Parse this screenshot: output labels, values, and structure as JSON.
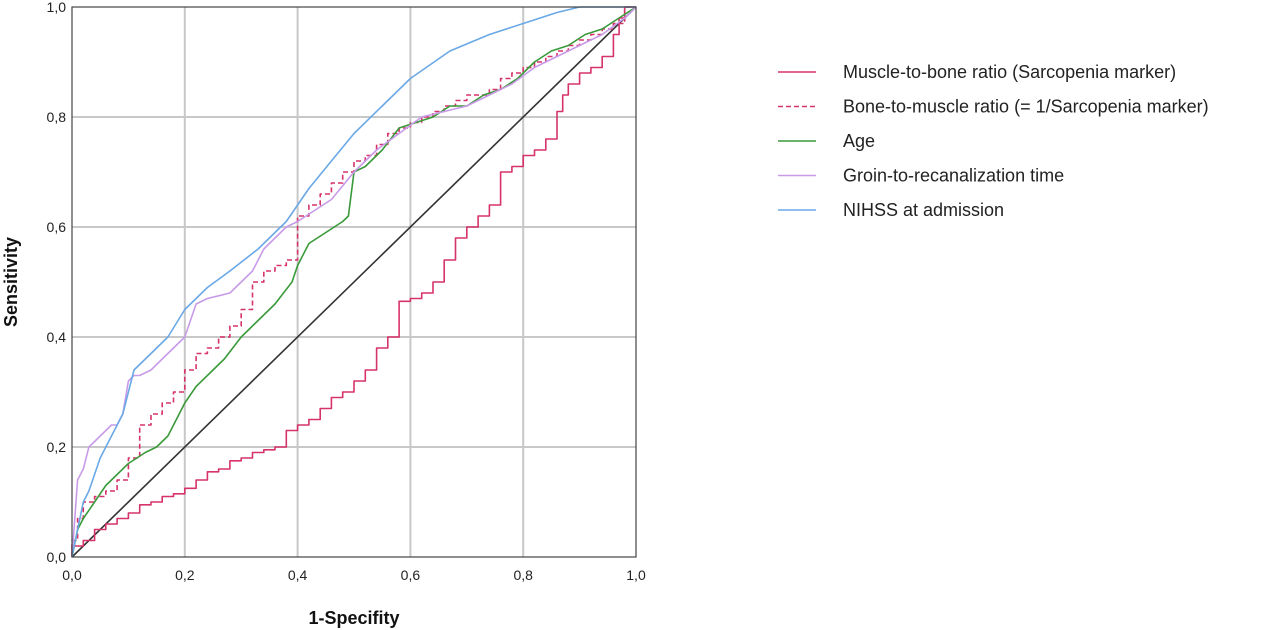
{
  "chart_data": {
    "type": "line",
    "xlabel": "1-Specifity",
    "ylabel": "Sensitivity",
    "xlim": [
      0,
      1
    ],
    "ylim": [
      0,
      1
    ],
    "xticks": [
      "0,0",
      "0,2",
      "0,4",
      "0,6",
      "0,8",
      "1,0"
    ],
    "yticks": [
      "0,0",
      "0,2",
      "0,4",
      "0,6",
      "0,8",
      "1,0"
    ],
    "grid": true,
    "legend_position": "right",
    "series": [
      {
        "name": "Muscle-to-bone ratio (Sarcopenia marker)",
        "color": "#d6336c",
        "dash": "solid",
        "step": true,
        "x": [
          0,
          0.02,
          0.04,
          0.06,
          0.08,
          0.1,
          0.12,
          0.14,
          0.16,
          0.18,
          0.2,
          0.22,
          0.24,
          0.26,
          0.28,
          0.3,
          0.32,
          0.34,
          0.36,
          0.38,
          0.4,
          0.42,
          0.44,
          0.46,
          0.48,
          0.5,
          0.52,
          0.54,
          0.56,
          0.58,
          0.6,
          0.62,
          0.64,
          0.66,
          0.68,
          0.7,
          0.72,
          0.74,
          0.76,
          0.78,
          0.8,
          0.82,
          0.84,
          0.86,
          0.87,
          0.88,
          0.9,
          0.92,
          0.94,
          0.96,
          0.97,
          0.98,
          1.0
        ],
        "y": [
          0,
          0.02,
          0.03,
          0.05,
          0.06,
          0.07,
          0.08,
          0.095,
          0.1,
          0.11,
          0.115,
          0.125,
          0.14,
          0.155,
          0.16,
          0.175,
          0.18,
          0.19,
          0.195,
          0.2,
          0.23,
          0.24,
          0.25,
          0.27,
          0.29,
          0.3,
          0.32,
          0.34,
          0.38,
          0.4,
          0.465,
          0.47,
          0.48,
          0.5,
          0.54,
          0.58,
          0.6,
          0.62,
          0.64,
          0.7,
          0.71,
          0.73,
          0.74,
          0.76,
          0.81,
          0.84,
          0.86,
          0.88,
          0.89,
          0.91,
          0.95,
          0.98,
          1.0
        ]
      },
      {
        "name": "Bone-to-muscle ratio (= 1/Sarcopenia marker)",
        "color": "#d6336c",
        "dash": "dashed",
        "step": true,
        "x": [
          0,
          0.01,
          0.02,
          0.04,
          0.06,
          0.08,
          0.1,
          0.12,
          0.14,
          0.16,
          0.18,
          0.2,
          0.22,
          0.24,
          0.26,
          0.28,
          0.3,
          0.32,
          0.34,
          0.36,
          0.38,
          0.4,
          0.42,
          0.44,
          0.46,
          0.48,
          0.5,
          0.52,
          0.54,
          0.56,
          0.58,
          0.6,
          0.62,
          0.64,
          0.66,
          0.68,
          0.7,
          0.72,
          0.74,
          0.76,
          0.78,
          0.8,
          0.82,
          0.84,
          0.86,
          0.88,
          0.9,
          0.92,
          0.94,
          0.96,
          0.98,
          1.0
        ],
        "y": [
          0,
          0.03,
          0.07,
          0.1,
          0.11,
          0.12,
          0.14,
          0.18,
          0.24,
          0.26,
          0.28,
          0.3,
          0.34,
          0.37,
          0.38,
          0.4,
          0.42,
          0.45,
          0.5,
          0.52,
          0.53,
          0.54,
          0.62,
          0.64,
          0.66,
          0.68,
          0.7,
          0.72,
          0.73,
          0.75,
          0.77,
          0.78,
          0.79,
          0.8,
          0.81,
          0.82,
          0.83,
          0.84,
          0.84,
          0.85,
          0.87,
          0.88,
          0.89,
          0.9,
          0.91,
          0.92,
          0.93,
          0.94,
          0.95,
          0.96,
          0.97,
          1.0
        ]
      },
      {
        "name": "Age",
        "color": "#3a9a3a",
        "dash": "solid",
        "step": false,
        "x": [
          0,
          0.01,
          0.02,
          0.04,
          0.06,
          0.08,
          0.1,
          0.13,
          0.15,
          0.17,
          0.2,
          0.22,
          0.25,
          0.27,
          0.3,
          0.33,
          0.36,
          0.39,
          0.4,
          0.42,
          0.45,
          0.48,
          0.49,
          0.5,
          0.52,
          0.55,
          0.58,
          0.61,
          0.64,
          0.67,
          0.7,
          0.73,
          0.76,
          0.79,
          0.82,
          0.85,
          0.88,
          0.91,
          0.94,
          0.97,
          1.0
        ],
        "y": [
          0,
          0.05,
          0.07,
          0.1,
          0.13,
          0.15,
          0.17,
          0.19,
          0.2,
          0.22,
          0.28,
          0.31,
          0.34,
          0.36,
          0.4,
          0.43,
          0.46,
          0.5,
          0.53,
          0.57,
          0.59,
          0.61,
          0.62,
          0.7,
          0.71,
          0.74,
          0.78,
          0.79,
          0.8,
          0.82,
          0.82,
          0.84,
          0.85,
          0.87,
          0.9,
          0.92,
          0.93,
          0.95,
          0.96,
          0.98,
          1.0
        ]
      },
      {
        "name": "Groin-to-recanalization time",
        "color": "#c89be8",
        "dash": "solid",
        "step": false,
        "x": [
          0,
          0.01,
          0.02,
          0.03,
          0.04,
          0.05,
          0.07,
          0.08,
          0.09,
          0.1,
          0.11,
          0.12,
          0.14,
          0.16,
          0.18,
          0.2,
          0.22,
          0.24,
          0.26,
          0.28,
          0.3,
          0.32,
          0.34,
          0.36,
          0.38,
          0.4,
          0.43,
          0.46,
          0.5,
          0.54,
          0.58,
          0.62,
          0.66,
          0.7,
          0.74,
          0.78,
          0.82,
          0.86,
          0.9,
          0.94,
          0.98,
          1.0
        ],
        "y": [
          0,
          0.14,
          0.16,
          0.2,
          0.21,
          0.22,
          0.24,
          0.24,
          0.26,
          0.32,
          0.33,
          0.33,
          0.34,
          0.36,
          0.38,
          0.4,
          0.46,
          0.47,
          0.475,
          0.48,
          0.5,
          0.52,
          0.56,
          0.58,
          0.6,
          0.61,
          0.63,
          0.65,
          0.7,
          0.74,
          0.77,
          0.8,
          0.81,
          0.82,
          0.84,
          0.86,
          0.89,
          0.91,
          0.93,
          0.95,
          0.98,
          1.0
        ]
      },
      {
        "name": "NIHSS at admission",
        "color": "#6aa8e6",
        "dash": "solid",
        "step": false,
        "x": [
          0,
          0.01,
          0.02,
          0.03,
          0.05,
          0.07,
          0.09,
          0.11,
          0.14,
          0.17,
          0.2,
          0.24,
          0.28,
          0.33,
          0.38,
          0.42,
          0.46,
          0.5,
          0.55,
          0.6,
          0.67,
          0.74,
          0.8,
          0.86,
          0.9,
          0.94,
          1.0
        ],
        "y": [
          0,
          0.05,
          0.1,
          0.12,
          0.18,
          0.22,
          0.26,
          0.34,
          0.37,
          0.4,
          0.45,
          0.49,
          0.52,
          0.56,
          0.61,
          0.67,
          0.72,
          0.77,
          0.82,
          0.87,
          0.92,
          0.95,
          0.97,
          0.99,
          1.0,
          1.0,
          1.0
        ]
      },
      {
        "name": "",
        "color": "#333333",
        "dash": "solid",
        "step": false,
        "reference": true,
        "x": [
          0,
          1
        ],
        "y": [
          0,
          1
        ]
      }
    ]
  }
}
